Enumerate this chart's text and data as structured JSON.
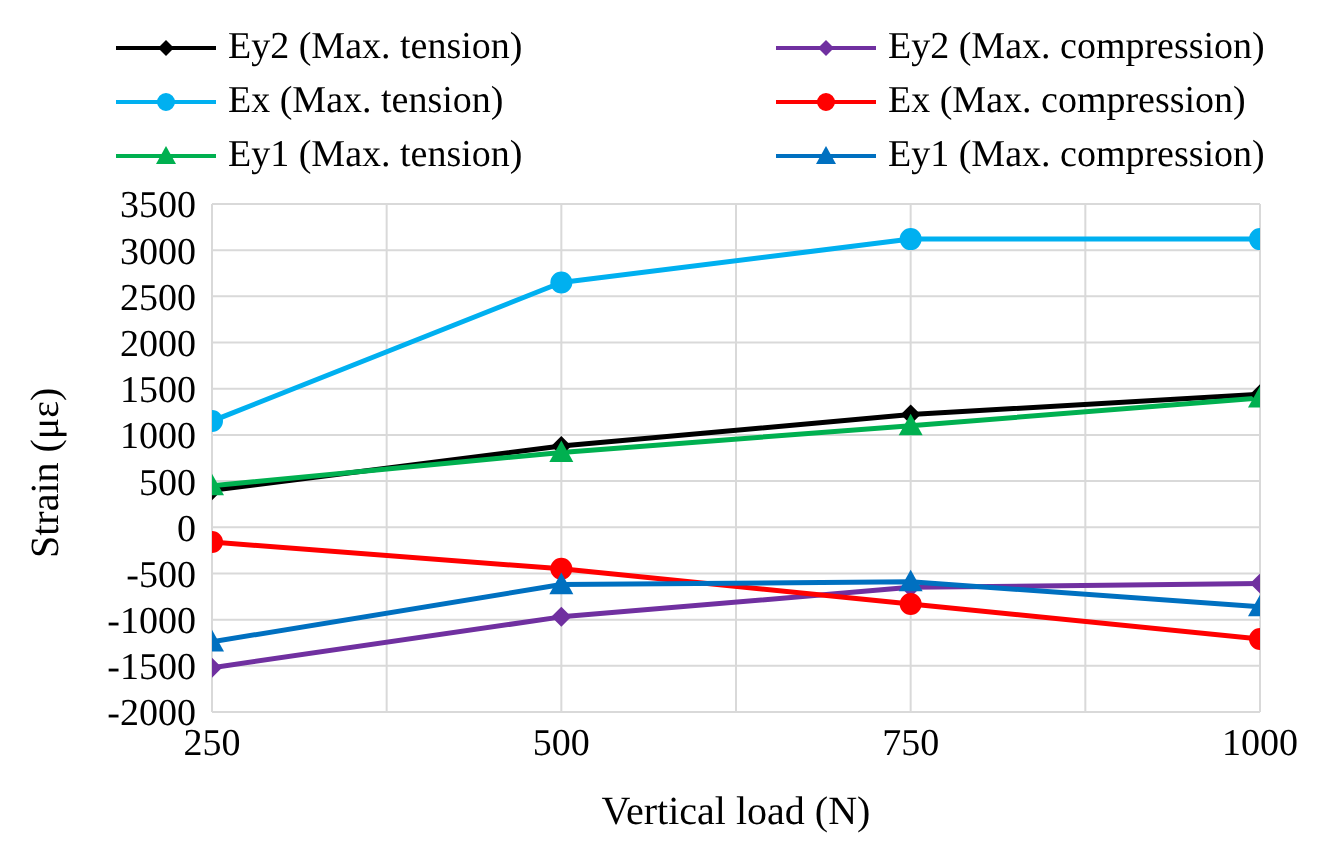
{
  "chart_data": {
    "type": "line",
    "xlabel": "Vertical load (N)",
    "ylabel": "Strain (με)",
    "x": [
      250,
      500,
      750,
      1000
    ],
    "xlim": [
      250,
      1000
    ],
    "xticks": [
      250,
      {
        "value": 375,
        "label": null
      },
      500,
      {
        "value": 625,
        "label": null
      },
      750,
      {
        "value": 875,
        "label": null
      },
      1000
    ],
    "ylim": [
      -2000,
      3500
    ],
    "yticks": [
      -2000,
      -1500,
      -1000,
      -500,
      0,
      500,
      1000,
      1500,
      2000,
      2500,
      3000,
      3500
    ],
    "grid": true,
    "legend": "top",
    "series": [
      {
        "name": "Ey2 (Max. tension)",
        "color": "#000000",
        "marker": "diamond",
        "values": [
          400,
          880,
          1220,
          1440
        ]
      },
      {
        "name": "Ey2 (Max. compression)",
        "color": "#7030a0",
        "marker": "diamond",
        "values": [
          -1520,
          -970,
          -650,
          -610
        ]
      },
      {
        "name": "Ex (Max. tension)",
        "color": "#00b0f0",
        "marker": "circle",
        "values": [
          1150,
          2650,
          3120,
          3120
        ]
      },
      {
        "name": "Ex (Max. compression)",
        "color": "#ff0000",
        "marker": "circle",
        "values": [
          -160,
          -450,
          -830,
          -1210
        ]
      },
      {
        "name": "Ey1 (Max. tension)",
        "color": "#00b050",
        "marker": "triangle",
        "values": [
          450,
          810,
          1100,
          1400
        ]
      },
      {
        "name": "Ey1 (Max. compression)",
        "color": "#0070c0",
        "marker": "triangle",
        "values": [
          -1240,
          -620,
          -590,
          -860
        ]
      }
    ]
  }
}
